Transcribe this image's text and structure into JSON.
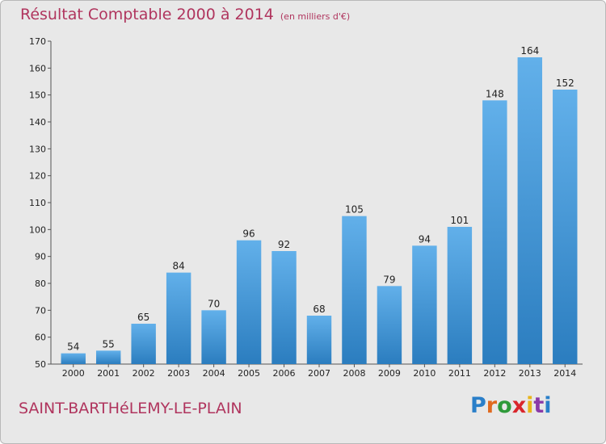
{
  "title": "Résultat Comptable 2000 à 2014",
  "unit_note": "(en milliers d'€)",
  "town": "SAINT-BARTHéLEMY-LE-PLAIN",
  "logo": {
    "text": "Proxiti",
    "letters": [
      "P",
      "r",
      "o",
      "x",
      "i",
      "t",
      "i"
    ]
  },
  "colors": {
    "title": "#b0355e",
    "bar_top": "#62b0ea",
    "bar_bottom": "#2b7dbf",
    "background": "#e8e8e8"
  },
  "chart_data": {
    "type": "bar",
    "title": "Résultat Comptable 2000 à 2014",
    "xlabel": "",
    "ylabel": "",
    "ylim": [
      50,
      170
    ],
    "yticks": [
      50,
      60,
      70,
      80,
      90,
      100,
      110,
      120,
      130,
      140,
      150,
      160,
      170
    ],
    "grid": false,
    "categories": [
      "2000",
      "2001",
      "2002",
      "2003",
      "2004",
      "2005",
      "2006",
      "2007",
      "2008",
      "2009",
      "2010",
      "2011",
      "2012",
      "2013",
      "2014"
    ],
    "values": [
      54,
      55,
      65,
      84,
      70,
      96,
      92,
      68,
      105,
      79,
      94,
      101,
      148,
      164,
      152
    ]
  }
}
